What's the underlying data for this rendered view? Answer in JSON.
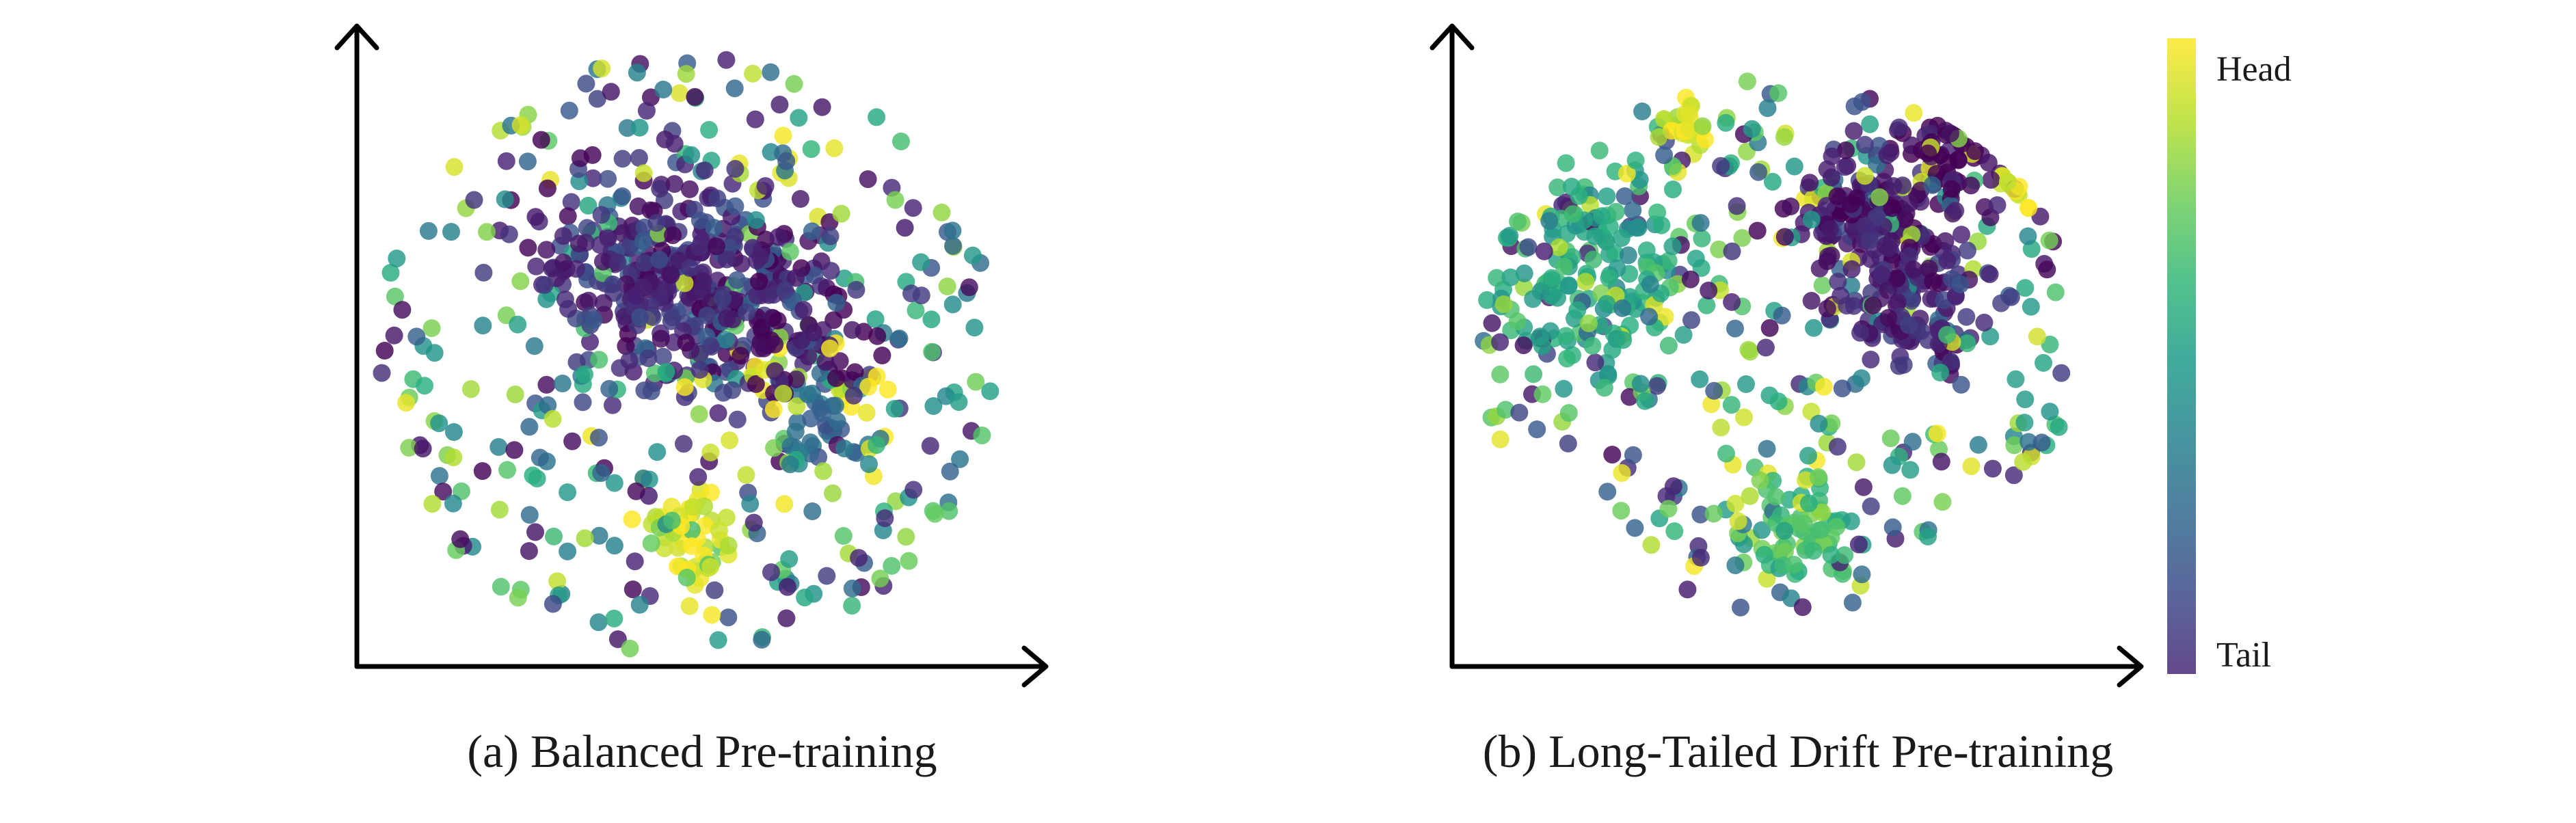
{
  "chart_data": [
    {
      "type": "scatter",
      "panel": "a",
      "title": "(a) Balanced Pre-training",
      "xlabel": "",
      "ylabel": "",
      "axis_ticks": "none",
      "grid": false,
      "point_count": 900,
      "color_encoding": "head-to-tail frequency (viridis)",
      "clusters": [
        {
          "x": -0.15,
          "y": 0.33,
          "spread": 0.16,
          "n": 160,
          "color_value": 0.12
        },
        {
          "x": 0.05,
          "y": 0.18,
          "spread": 0.18,
          "n": 150,
          "color_value": 0.18
        },
        {
          "x": 0.3,
          "y": 0.15,
          "spread": 0.14,
          "n": 110,
          "color_value": 0.04
        },
        {
          "x": 0.45,
          "y": -0.22,
          "spread": 0.1,
          "n": 40,
          "color_value": 0.35
        },
        {
          "x": 0.0,
          "y": -0.6,
          "spread": 0.08,
          "n": 45,
          "color_value": 0.96
        },
        {
          "x": 0.55,
          "y": -0.08,
          "spread": 0.06,
          "n": 12,
          "color_value": 0.98
        },
        {
          "x": 0.25,
          "y": -0.08,
          "spread": 0.05,
          "n": 12,
          "color_value": 0.97
        },
        {
          "x": 0.0,
          "y": 0.0,
          "spread": 1.0,
          "n": 371,
          "color_value": "mixed"
        }
      ]
    },
    {
      "type": "scatter",
      "panel": "b",
      "title": "(b) Long-Tailed Drift Pre-training",
      "xlabel": "",
      "ylabel": "",
      "axis_ticks": "none",
      "grid": false,
      "point_count": 900,
      "color_encoding": "head-to-tail frequency (viridis)",
      "colorbar": {
        "top_label": "Head",
        "bottom_label": "Tail",
        "colormap": "viridis",
        "top_color": "#fde725",
        "bottom_color": "#440154"
      },
      "clusters": [
        {
          "x": 0.3,
          "y": 0.45,
          "spread": 0.12,
          "n": 120,
          "color_value": 0.08
        },
        {
          "x": 0.45,
          "y": 0.15,
          "spread": 0.12,
          "n": 110,
          "color_value": 0.12
        },
        {
          "x": 0.55,
          "y": 0.7,
          "spread": 0.12,
          "n": 60,
          "color_value": 0.03
        },
        {
          "x": -0.3,
          "y": 0.82,
          "spread": 0.05,
          "n": 25,
          "color_value": 0.97
        },
        {
          "x": 0.85,
          "y": 0.65,
          "spread": 0.06,
          "n": 18,
          "color_value": 0.95
        },
        {
          "x": 0.1,
          "y": -0.68,
          "spread": 0.1,
          "n": 60,
          "color_value": 0.7
        },
        {
          "x": -0.6,
          "y": 0.3,
          "spread": 0.2,
          "n": 140,
          "color_value": 0.6
        },
        {
          "x": 0.0,
          "y": 0.0,
          "spread": 1.0,
          "n": 367,
          "color_value": "mixed"
        }
      ]
    }
  ]
}
